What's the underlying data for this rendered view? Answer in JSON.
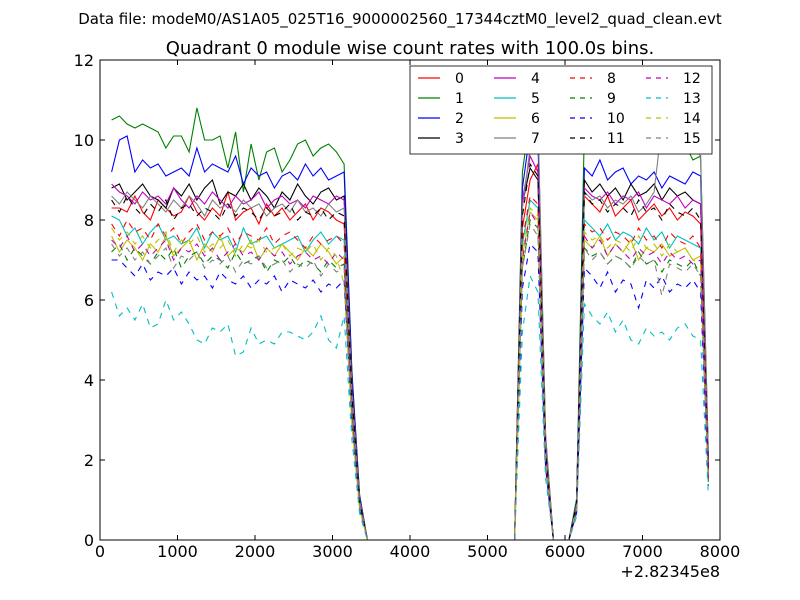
{
  "chart_data": {
    "type": "line",
    "suptitle": "Data file: modeM0/AS1A05_025T16_9000002560_17344cztM0_level2_quad_clean.evt",
    "title": "Quadrant 0 module wise count rates with 100.0s bins.",
    "xlabel": "",
    "ylabel": "",
    "x_offset_label": "+2.82345e8",
    "xlim": [
      0,
      8000
    ],
    "ylim": [
      0,
      12
    ],
    "xticks": [
      0,
      1000,
      2000,
      3000,
      4000,
      5000,
      6000,
      7000,
      8000
    ],
    "yticks": [
      0,
      2,
      4,
      6,
      8,
      10,
      12
    ],
    "x": [
      150,
      250,
      350,
      450,
      550,
      650,
      750,
      850,
      950,
      1050,
      1150,
      1250,
      1350,
      1450,
      1550,
      1650,
      1750,
      1850,
      1950,
      2050,
      2150,
      2250,
      2350,
      2450,
      2550,
      2650,
      2750,
      2850,
      2950,
      3050,
      3150,
      3250,
      3350,
      3450,
      3550,
      3650,
      3750,
      3850,
      3950,
      4050,
      4150,
      4250,
      4350,
      4450,
      4550,
      4650,
      4750,
      4850,
      4950,
      5050,
      5150,
      5250,
      5350,
      5450,
      5550,
      5650,
      5750,
      5850,
      5950,
      6050,
      6150,
      6250,
      6350,
      6450,
      6550,
      6650,
      6750,
      6850,
      6950,
      7050,
      7150,
      7250,
      7350,
      7450,
      7550,
      7650,
      7750,
      7850
    ],
    "gaps": [
      [
        3450,
        5350
      ],
      [
        5950,
        6150
      ]
    ],
    "series": [
      {
        "name": "0",
        "color": "#ff0000",
        "dash": false,
        "base": [
          8.3,
          8.3,
          8.2,
          8.6,
          8.2,
          8.0,
          8.5,
          8.3,
          8.1,
          8.2,
          8.6,
          8.2,
          8.0,
          8.3,
          8.1,
          8.7,
          8.0,
          8.2,
          8.3,
          7.9,
          8.4,
          8.1,
          8.3,
          8.0,
          8.2,
          8.4,
          8.0,
          8.3,
          8.2,
          8.0,
          7.9
        ],
        "peak1": [
          7.8,
          9.0,
          9.4
        ],
        "peak2": [
          8.6,
          8.4,
          8.2,
          8.6,
          8.1,
          8.3,
          8.5,
          8.0,
          8.2,
          8.4,
          8.1,
          8.3,
          8.0,
          8.2,
          8.1,
          7.9
        ]
      },
      {
        "name": "1",
        "color": "#008000",
        "dash": false,
        "base": [
          10.5,
          10.6,
          10.4,
          10.3,
          10.4,
          10.3,
          10.2,
          9.8,
          10.1,
          10.1,
          9.7,
          10.8,
          10.0,
          10.0,
          10.1,
          9.3,
          10.2,
          8.7,
          9.9,
          9.0,
          9.7,
          9.8,
          9.2,
          9.5,
          9.9,
          10.0,
          9.6,
          9.8,
          9.9,
          9.7,
          9.4
        ],
        "peak1": [
          9.2,
          10.6,
          10.4
        ],
        "peak2": [
          10.3,
          10.1,
          9.9,
          10.2,
          9.8,
          9.9,
          10.0,
          9.7,
          9.8,
          10.1,
          9.9,
          9.8,
          9.7,
          9.9,
          9.5,
          9.6
        ]
      },
      {
        "name": "2",
        "color": "#0000ff",
        "dash": false,
        "base": [
          9.2,
          10.0,
          10.1,
          9.2,
          9.5,
          9.3,
          9.4,
          9.1,
          9.2,
          9.3,
          9.1,
          9.8,
          9.2,
          9.4,
          9.3,
          9.2,
          9.6,
          8.9,
          9.3,
          9.1,
          9.2,
          8.8,
          9.1,
          9.2,
          9.0,
          9.4,
          9.1,
          9.3,
          9.0,
          9.1,
          9.2
        ],
        "peak1": [
          8.8,
          10.2,
          10.0
        ],
        "peak2": [
          9.3,
          9.1,
          9.5,
          9.0,
          9.2,
          9.3,
          8.9,
          9.1,
          9.0,
          9.2,
          8.8,
          9.1,
          9.0,
          8.9,
          9.2,
          9.1
        ]
      },
      {
        "name": "3",
        "color": "#000000",
        "dash": false,
        "base": [
          8.8,
          8.9,
          8.5,
          8.7,
          8.9,
          8.6,
          8.5,
          8.3,
          8.8,
          8.6,
          8.9,
          8.5,
          8.8,
          9.0,
          8.4,
          8.7,
          8.6,
          8.9,
          8.5,
          8.8,
          8.6,
          8.3,
          8.7,
          8.5,
          8.9,
          8.6,
          8.4,
          8.7,
          8.8,
          8.5,
          8.6
        ],
        "peak1": [
          8.4,
          9.3,
          9.0
        ],
        "peak2": [
          9.0,
          8.7,
          8.9,
          8.6,
          8.8,
          8.5,
          8.9,
          8.6,
          8.7,
          8.9,
          8.5,
          8.8,
          8.6,
          8.7,
          8.5,
          8.4
        ]
      },
      {
        "name": "4",
        "color": "#bf00bf",
        "dash": false,
        "base": [
          8.9,
          8.7,
          8.6,
          8.4,
          8.7,
          8.5,
          8.6,
          8.4,
          8.8,
          8.5,
          8.3,
          8.6,
          8.4,
          8.7,
          8.5,
          8.3,
          8.6,
          8.4,
          8.5,
          8.7,
          8.3,
          8.5,
          8.6,
          8.4,
          8.5,
          8.3,
          8.6,
          8.5,
          8.4,
          8.6,
          8.5
        ],
        "peak1": [
          8.5,
          9.6,
          9.2
        ],
        "peak2": [
          8.8,
          8.6,
          8.5,
          8.7,
          8.4,
          8.6,
          8.5,
          8.7,
          8.3,
          8.6,
          8.5,
          8.4,
          8.6,
          8.3,
          8.5,
          8.4
        ]
      },
      {
        "name": "5",
        "color": "#00bfbf",
        "dash": false,
        "base": [
          8.1,
          8.0,
          7.6,
          7.8,
          7.4,
          7.7,
          7.9,
          7.5,
          7.6,
          7.4,
          7.5,
          7.8,
          7.3,
          7.7,
          7.5,
          7.6,
          7.2,
          7.8,
          7.4,
          7.5,
          7.6,
          7.3,
          7.4,
          7.5,
          7.6,
          7.2,
          7.5,
          7.7,
          7.4,
          7.6,
          7.5
        ],
        "peak1": [
          7.4,
          8.5,
          8.3
        ],
        "peak2": [
          8.0,
          7.8,
          7.6,
          7.9,
          7.5,
          7.7,
          7.6,
          7.4,
          7.8,
          7.5,
          7.7,
          7.3,
          7.6,
          7.5,
          7.4,
          7.3
        ]
      },
      {
        "name": "6",
        "color": "#bfbf00",
        "dash": false,
        "base": [
          7.6,
          7.2,
          7.5,
          7.3,
          7.0,
          7.4,
          7.2,
          7.6,
          7.1,
          7.3,
          7.5,
          7.0,
          7.4,
          7.2,
          7.6,
          7.1,
          7.3,
          7.2,
          7.5,
          7.0,
          7.3,
          7.1,
          7.4,
          7.2,
          7.0,
          7.3,
          7.1,
          7.4,
          7.2,
          6.9,
          7.1
        ],
        "peak1": [
          7.1,
          8.2,
          8.0
        ],
        "peak2": [
          7.5,
          7.3,
          7.6,
          7.1,
          7.4,
          7.2,
          7.5,
          7.0,
          7.3,
          7.2,
          7.4,
          7.1,
          7.2,
          7.3,
          7.0,
          7.1
        ]
      },
      {
        "name": "7",
        "color": "#808080",
        "dash": false,
        "base": [
          8.6,
          8.4,
          8.7,
          8.5,
          8.3,
          8.6,
          8.4,
          8.2,
          8.5,
          8.3,
          8.6,
          8.4,
          8.1,
          8.5,
          8.3,
          8.4,
          8.2,
          8.5,
          8.3,
          8.4,
          8.1,
          8.3,
          8.4,
          8.2,
          8.5,
          8.2,
          8.3,
          8.1,
          8.4,
          8.2,
          8.3
        ],
        "peak1": [
          8.3,
          9.8,
          10.6
        ],
        "peak2": [
          8.7,
          8.5,
          8.6,
          8.3,
          8.5,
          8.4,
          8.6,
          8.2,
          8.4,
          8.7,
          10.4,
          10.0,
          9.8,
          10.1,
          10.7,
          9.5
        ]
      },
      {
        "name": "8",
        "color": "#ff0000",
        "dash": true,
        "base": [
          7.9,
          7.6,
          8.0,
          7.7,
          7.8,
          7.5,
          7.9,
          7.6,
          7.8,
          7.4,
          7.7,
          7.9,
          7.5,
          7.7,
          7.6,
          7.8,
          7.4,
          7.7,
          7.6,
          7.5,
          7.8,
          7.4,
          7.6,
          7.7,
          7.5,
          7.3,
          7.6,
          7.4,
          7.5,
          7.6,
          7.4
        ],
        "peak1": [
          7.5,
          8.6,
          8.4
        ],
        "peak2": [
          7.9,
          7.7,
          7.8,
          7.5,
          7.7,
          7.6,
          7.4,
          7.8,
          7.5,
          7.6,
          7.3,
          7.7,
          7.5,
          7.4,
          7.6,
          7.3
        ]
      },
      {
        "name": "9",
        "color": "#008000",
        "dash": true,
        "base": [
          7.2,
          7.4,
          7.0,
          7.3,
          7.1,
          6.9,
          7.2,
          7.0,
          7.3,
          6.8,
          7.1,
          7.2,
          6.9,
          7.1,
          7.0,
          6.8,
          7.2,
          6.9,
          7.0,
          7.1,
          6.7,
          7.0,
          6.9,
          7.1,
          6.8,
          7.0,
          6.9,
          6.7,
          7.0,
          6.8,
          6.9
        ],
        "peak1": [
          6.8,
          8.0,
          7.8
        ],
        "peak2": [
          7.3,
          7.1,
          7.2,
          6.9,
          7.1,
          7.0,
          6.8,
          7.2,
          6.9,
          7.0,
          6.7,
          7.0,
          6.9,
          6.8,
          7.0,
          6.6
        ]
      },
      {
        "name": "10",
        "color": "#0000ff",
        "dash": true,
        "base": [
          7.0,
          7.0,
          6.8,
          6.6,
          6.9,
          6.5,
          6.7,
          6.6,
          6.8,
          6.4,
          6.7,
          6.5,
          6.6,
          6.3,
          6.7,
          6.5,
          6.4,
          6.6,
          6.3,
          6.5,
          6.4,
          6.6,
          6.2,
          6.5,
          6.4,
          6.3,
          6.5,
          6.2,
          6.4,
          6.3,
          6.5
        ],
        "peak1": [
          6.3,
          7.4,
          7.2
        ],
        "peak2": [
          6.8,
          6.6,
          6.3,
          6.7,
          6.2,
          6.5,
          6.4,
          5.8,
          6.5,
          6.3,
          6.6,
          6.2,
          6.4,
          6.3,
          6.5,
          6.2
        ]
      },
      {
        "name": "11",
        "color": "#000000",
        "dash": true,
        "base": [
          8.5,
          8.2,
          8.6,
          8.3,
          8.1,
          8.4,
          8.2,
          8.5,
          8.0,
          8.3,
          8.4,
          8.1,
          8.3,
          8.2,
          8.0,
          8.4,
          8.1,
          8.3,
          8.2,
          8.0,
          8.3,
          8.1,
          8.2,
          8.4,
          8.0,
          8.2,
          8.1,
          8.3,
          8.0,
          8.2,
          8.1
        ],
        "peak1": [
          8.1,
          9.4,
          9.1
        ],
        "peak2": [
          8.7,
          8.4,
          8.5,
          8.2,
          8.4,
          8.3,
          8.1,
          8.5,
          8.2,
          8.3,
          8.0,
          8.4,
          8.2,
          8.1,
          8.3,
          8.0
        ]
      },
      {
        "name": "12",
        "color": "#bf00bf",
        "dash": true,
        "base": [
          7.5,
          7.3,
          7.6,
          7.2,
          7.4,
          7.1,
          7.3,
          7.5,
          7.0,
          7.3,
          7.2,
          7.4,
          7.1,
          7.3,
          7.0,
          7.2,
          7.4,
          7.1,
          7.2,
          7.0,
          7.3,
          7.1,
          7.2,
          6.9,
          7.1,
          7.2,
          7.0,
          7.1,
          6.9,
          7.2,
          7.0
        ],
        "peak1": [
          7.0,
          8.2,
          7.9
        ],
        "peak2": [
          7.6,
          7.3,
          7.5,
          7.1,
          7.4,
          7.2,
          7.0,
          7.3,
          7.1,
          7.2,
          6.9,
          7.2,
          7.0,
          7.1,
          6.9,
          7.0
        ]
      },
      {
        "name": "13",
        "color": "#00bfbf",
        "dash": true,
        "base": [
          6.2,
          5.6,
          5.8,
          5.5,
          5.9,
          5.3,
          5.4,
          6.0,
          5.5,
          5.7,
          5.4,
          5.0,
          4.9,
          5.3,
          5.2,
          5.4,
          4.6,
          4.7,
          5.3,
          4.9,
          5.0,
          4.9,
          5.2,
          5.2,
          5.1,
          5.0,
          5.2,
          5.6,
          5.0,
          4.8,
          5.6
        ],
        "peak1": [
          5.2,
          6.6,
          6.2
        ],
        "peak2": [
          5.9,
          5.6,
          5.4,
          5.7,
          5.2,
          5.5,
          5.0,
          4.9,
          5.3,
          5.1,
          5.2,
          5.0,
          5.3,
          5.4,
          5.1,
          5.0
        ]
      },
      {
        "name": "14",
        "color": "#bfbf00",
        "dash": true,
        "base": [
          7.8,
          7.5,
          7.7,
          7.4,
          7.6,
          7.3,
          7.5,
          7.7,
          7.2,
          7.5,
          7.4,
          7.6,
          7.2,
          7.4,
          7.3,
          7.5,
          7.1,
          7.4,
          7.3,
          7.5,
          7.2,
          7.3,
          7.4,
          7.1,
          7.3,
          7.2,
          7.4,
          7.0,
          7.3,
          7.1,
          6.4
        ],
        "peak1": [
          7.2,
          8.3,
          8.1
        ],
        "peak2": [
          7.7,
          7.5,
          7.6,
          7.3,
          7.5,
          7.4,
          7.2,
          7.6,
          7.3,
          7.4,
          7.1,
          7.4,
          7.2,
          7.3,
          7.0,
          6.9
        ]
      },
      {
        "name": "15",
        "color": "#808080",
        "dash": true,
        "base": [
          7.4,
          7.1,
          7.3,
          7.0,
          7.2,
          6.9,
          7.1,
          7.3,
          6.8,
          7.1,
          7.0,
          7.2,
          6.8,
          7.0,
          6.9,
          7.1,
          6.7,
          7.0,
          6.9,
          7.1,
          6.8,
          6.9,
          7.0,
          6.7,
          6.9,
          6.8,
          7.0,
          6.6,
          6.9,
          6.7,
          6.8
        ],
        "peak1": [
          6.8,
          7.9,
          7.6
        ],
        "peak2": [
          7.3,
          7.0,
          7.2,
          6.9,
          7.1,
          7.0,
          6.8,
          7.1,
          6.9,
          7.0,
          6.1,
          6.9,
          6.8,
          6.7,
          6.9,
          6.6
        ]
      }
    ]
  }
}
